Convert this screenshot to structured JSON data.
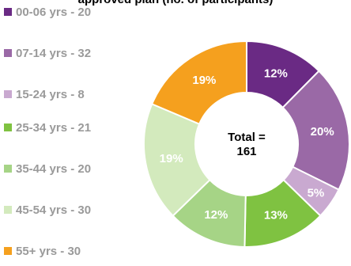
{
  "chart_data": {
    "type": "pie",
    "title": "approved plan (no. of participants)",
    "center_label": [
      "Total =",
      "161"
    ],
    "slices": [
      {
        "legend": "00-06 yrs - 20",
        "label": "12%",
        "value": 20,
        "color": "#6a2a84",
        "label_color": "#ffffff"
      },
      {
        "legend": "07-14 yrs - 32",
        "label": "20%",
        "value": 32,
        "color": "#9a69a6",
        "label_color": "#ffffff"
      },
      {
        "legend": "15-24 yrs - 8",
        "label": "5%",
        "value": 8,
        "color": "#c9a9d0",
        "label_color": "#ffffff"
      },
      {
        "legend": "25-34 yrs - 21",
        "label": "13%",
        "value": 21,
        "color": "#7fc241",
        "label_color": "#ffffff"
      },
      {
        "legend": "35-44 yrs - 20",
        "label": "12%",
        "value": 20,
        "color": "#a6d486",
        "label_color": "#ffffff"
      },
      {
        "legend": "45-54 yrs - 30",
        "label": "19%",
        "value": 30,
        "color": "#d3eabd",
        "label_color": "#ffffff"
      },
      {
        "legend": "55+ yrs - 30",
        "label": "19%",
        "value": 30,
        "color": "#f5a01e",
        "label_color": "#ffffff"
      }
    ]
  }
}
